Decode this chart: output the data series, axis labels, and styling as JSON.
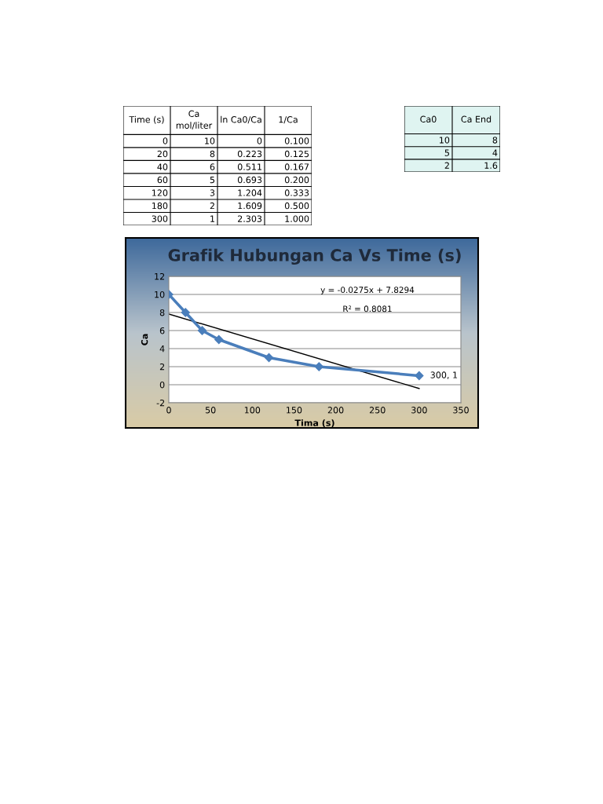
{
  "chart_data": [
    {
      "type": "other",
      "categories": [
        "Time (s)",
        "Ca\nmol/liter",
        "ln Ca0/Ca",
        "1/Ca"
      ],
      "annotations": [
        "0",
        "10",
        "0",
        "0.100",
        "20",
        "8",
        "0.223",
        "0.125",
        "40",
        "6",
        "0.511",
        "0.167",
        "60",
        "5",
        "0.693",
        "0.200",
        "120",
        "3",
        "1.204",
        "0.333",
        "180",
        "2",
        "1.609",
        "0.500",
        "300",
        "1",
        "2.303",
        "1.000"
      ]
    },
    {
      "type": "other",
      "categories": [
        "Ca0",
        "Ca End"
      ],
      "color": "#dff4f1",
      "annotations": [
        "10",
        "8",
        "5",
        "4",
        "2",
        "1.6"
      ]
    },
    {
      "type": "line",
      "title": "Grafik Hubungan Ca Vs Time (s)",
      "xlabel": "Tima (s)",
      "ylabel": "Ca",
      "series": [
        {
          "x": [
            0,
            20,
            40,
            60,
            120,
            180,
            300
          ],
          "values": [
            10,
            8,
            6,
            5,
            3,
            2,
            1
          ],
          "color": "#4a7ebb",
          "marker": "diamond"
        },
        {
          "x": [
            0,
            300
          ],
          "values": [
            7.8294,
            -0.4206
          ],
          "color": "#000000",
          "marker": "none"
        }
      ],
      "annotations": [
        "y = -0.0275x + 7.8294",
        "R² = 0.8081",
        {
          "text": "300, 1",
          "x": 300,
          "y": 1
        }
      ],
      "xlim": [
        0,
        350
      ],
      "xticks": [
        0,
        50,
        100,
        150,
        200,
        250,
        300,
        350
      ],
      "ylim": [
        -2,
        12
      ],
      "yticks": [
        -2,
        0,
        2,
        4,
        6,
        8,
        10,
        12
      ],
      "grid": "y"
    }
  ]
}
